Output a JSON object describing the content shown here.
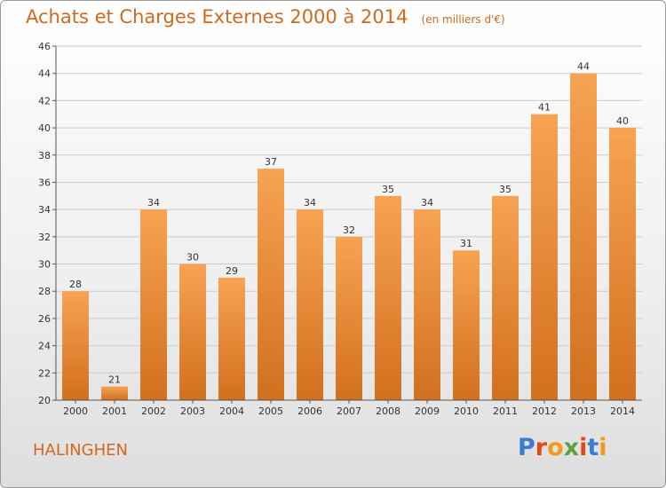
{
  "header": {
    "title": "Achats et Charges Externes 2000 à 2014",
    "unit": "(en milliers d'€)"
  },
  "commune": "HALINGHEN",
  "logo": {
    "text": "Proxiti",
    "colors": [
      "#3a7bd5",
      "#e8471a",
      "#f29a1f",
      "#5aa33a",
      "#e8471a",
      "#3a7bd5",
      "#f29a1f"
    ]
  },
  "colors": {
    "title": "#d2691e",
    "bar_light": "#f7a352",
    "bar_dark": "#d1701d",
    "grid": "#cccccc",
    "axis_text": "#333333"
  },
  "chart_data": {
    "type": "bar",
    "title": "Achats et Charges Externes 2000 à 2014",
    "xlabel": "",
    "ylabel": "",
    "ylim": [
      20,
      46
    ],
    "yticks": [
      20,
      22,
      24,
      26,
      28,
      30,
      32,
      34,
      36,
      38,
      40,
      42,
      44,
      46
    ],
    "grid": true,
    "categories": [
      "2000",
      "2001",
      "2002",
      "2003",
      "2004",
      "2005",
      "2006",
      "2007",
      "2008",
      "2009",
      "2010",
      "2011",
      "2012",
      "2013",
      "2014"
    ],
    "values": [
      28,
      21,
      34,
      30,
      29,
      37,
      34,
      32,
      35,
      34,
      31,
      35,
      41,
      44,
      40
    ]
  }
}
